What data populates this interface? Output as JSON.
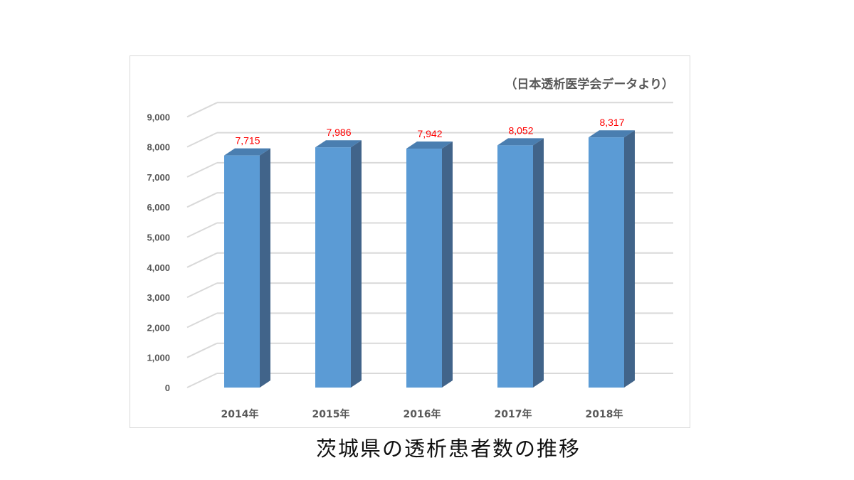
{
  "caption": "茨城県の透析患者数の推移",
  "chart_data": {
    "type": "bar",
    "source_note": "（日本透析医学会データより）",
    "categories": [
      "2014年",
      "2015年",
      "2016年",
      "2017年",
      "2018年"
    ],
    "values": [
      7715,
      7986,
      7942,
      8052,
      8317
    ],
    "data_labels": [
      "7,715",
      "7,986",
      "7,942",
      "8,052",
      "8,317"
    ],
    "yticks": [
      "0",
      "1,000",
      "2,000",
      "3,000",
      "4,000",
      "5,000",
      "6,000",
      "7,000",
      "8,000",
      "9,000"
    ],
    "ylim": [
      0,
      9000
    ],
    "grid": true,
    "bar_color": "#5b9bd5",
    "bar_side_color": "#41648a",
    "bar_top_color": "#4a7eb0",
    "label_color": "#ff0000",
    "grid_color": "#d9d9d9"
  }
}
